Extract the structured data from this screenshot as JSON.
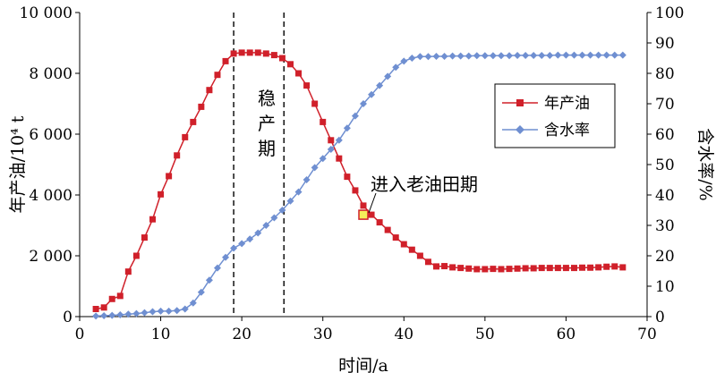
{
  "chart_data": {
    "type": "line",
    "xlabel": "时间/a",
    "ylabel_left": "年产油/10⁴ t",
    "ylabel_right": "含水率/%",
    "xlim": [
      0,
      70
    ],
    "ylim_left": [
      0,
      10000
    ],
    "ylim_right": [
      0,
      100
    ],
    "x_ticks": [
      "0",
      "10",
      "20",
      "30",
      "40",
      "50",
      "60",
      "70"
    ],
    "y_left_ticks": [
      "0",
      "2 000",
      "4 000",
      "6 000",
      "8 000",
      "10 000"
    ],
    "y_right_ticks": [
      "0",
      "10",
      "20",
      "30",
      "40",
      "50",
      "60",
      "70",
      "80",
      "90",
      "100"
    ],
    "grid": false,
    "legend_position": "top-right",
    "vertical_lines": [
      19,
      25.2
    ],
    "annotations": {
      "stable_period": [
        "稳",
        "产",
        "期"
      ],
      "old_field": "进入老油田期",
      "old_field_point": {
        "x": 35,
        "y": 3350
      }
    },
    "series": [
      {
        "name": "年产油",
        "axis": "left",
        "color": "#d0202a",
        "marker": "square",
        "points": [
          [
            2,
            250
          ],
          [
            3,
            300
          ],
          [
            4,
            580
          ],
          [
            5,
            680
          ],
          [
            6,
            1480
          ],
          [
            7,
            2000
          ],
          [
            8,
            2600
          ],
          [
            9,
            3200
          ],
          [
            10,
            4020
          ],
          [
            11,
            4620
          ],
          [
            12,
            5300
          ],
          [
            13,
            5900
          ],
          [
            14,
            6400
          ],
          [
            15,
            6900
          ],
          [
            16,
            7450
          ],
          [
            17,
            7950
          ],
          [
            18,
            8400
          ],
          [
            19,
            8650
          ],
          [
            20,
            8680
          ],
          [
            21,
            8680
          ],
          [
            22,
            8680
          ],
          [
            23,
            8650
          ],
          [
            24,
            8600
          ],
          [
            25,
            8500
          ],
          [
            26,
            8300
          ],
          [
            27,
            8000
          ],
          [
            28,
            7600
          ],
          [
            29,
            7000
          ],
          [
            30,
            6400
          ],
          [
            31,
            5800
          ],
          [
            32,
            5200
          ],
          [
            33,
            4600
          ],
          [
            34,
            4150
          ],
          [
            35,
            3650
          ],
          [
            36,
            3350
          ],
          [
            37,
            3100
          ],
          [
            38,
            2850
          ],
          [
            39,
            2600
          ],
          [
            40,
            2380
          ],
          [
            41,
            2200
          ],
          [
            42,
            2000
          ],
          [
            43,
            1800
          ],
          [
            44,
            1650
          ],
          [
            45,
            1660
          ],
          [
            46,
            1620
          ],
          [
            47,
            1600
          ],
          [
            48,
            1580
          ],
          [
            49,
            1560
          ],
          [
            50,
            1560
          ],
          [
            51,
            1570
          ],
          [
            52,
            1560
          ],
          [
            53,
            1570
          ],
          [
            54,
            1580
          ],
          [
            55,
            1590
          ],
          [
            56,
            1590
          ],
          [
            57,
            1600
          ],
          [
            58,
            1600
          ],
          [
            59,
            1600
          ],
          [
            60,
            1600
          ],
          [
            61,
            1600
          ],
          [
            62,
            1610
          ],
          [
            63,
            1610
          ],
          [
            64,
            1620
          ],
          [
            65,
            1640
          ],
          [
            66,
            1650
          ],
          [
            67,
            1620
          ]
        ]
      },
      {
        "name": "含水率",
        "axis": "right",
        "color": "#6f8fd1",
        "marker": "diamond",
        "points": [
          [
            2,
            0.2
          ],
          [
            3,
            0.3
          ],
          [
            4,
            0.4
          ],
          [
            5,
            0.6
          ],
          [
            6,
            0.8
          ],
          [
            7,
            1.0
          ],
          [
            8,
            1.3
          ],
          [
            9,
            1.6
          ],
          [
            10,
            1.8
          ],
          [
            11,
            1.8
          ],
          [
            12,
            2.0
          ],
          [
            13,
            2.5
          ],
          [
            14,
            4.5
          ],
          [
            15,
            8
          ],
          [
            16,
            12
          ],
          [
            17,
            16
          ],
          [
            18,
            19.5
          ],
          [
            19,
            22.5
          ],
          [
            20,
            24
          ],
          [
            21,
            25.5
          ],
          [
            22,
            27.5
          ],
          [
            23,
            30
          ],
          [
            24,
            32.5
          ],
          [
            25,
            35
          ],
          [
            26,
            38
          ],
          [
            27,
            41
          ],
          [
            28,
            45
          ],
          [
            29,
            49
          ],
          [
            30,
            52
          ],
          [
            31,
            55
          ],
          [
            32,
            58
          ],
          [
            33,
            62
          ],
          [
            34,
            66
          ],
          [
            35,
            70
          ],
          [
            36,
            73
          ],
          [
            37,
            76
          ],
          [
            38,
            79
          ],
          [
            39,
            82
          ],
          [
            40,
            84
          ],
          [
            41,
            85
          ],
          [
            42,
            85.5
          ],
          [
            43,
            85.5
          ],
          [
            44,
            85.6
          ],
          [
            45,
            85.6
          ],
          [
            46,
            85.7
          ],
          [
            47,
            85.7
          ],
          [
            48,
            85.7
          ],
          [
            49,
            85.8
          ],
          [
            50,
            85.8
          ],
          [
            51,
            85.8
          ],
          [
            52,
            85.8
          ],
          [
            53,
            85.8
          ],
          [
            54,
            85.9
          ],
          [
            55,
            85.9
          ],
          [
            56,
            85.9
          ],
          [
            57,
            85.9
          ],
          [
            58,
            85.9
          ],
          [
            59,
            86
          ],
          [
            60,
            86
          ],
          [
            61,
            86
          ],
          [
            62,
            86
          ],
          [
            63,
            86
          ],
          [
            64,
            86
          ],
          [
            65,
            86
          ],
          [
            66,
            86
          ],
          [
            67,
            86
          ]
        ]
      }
    ]
  }
}
